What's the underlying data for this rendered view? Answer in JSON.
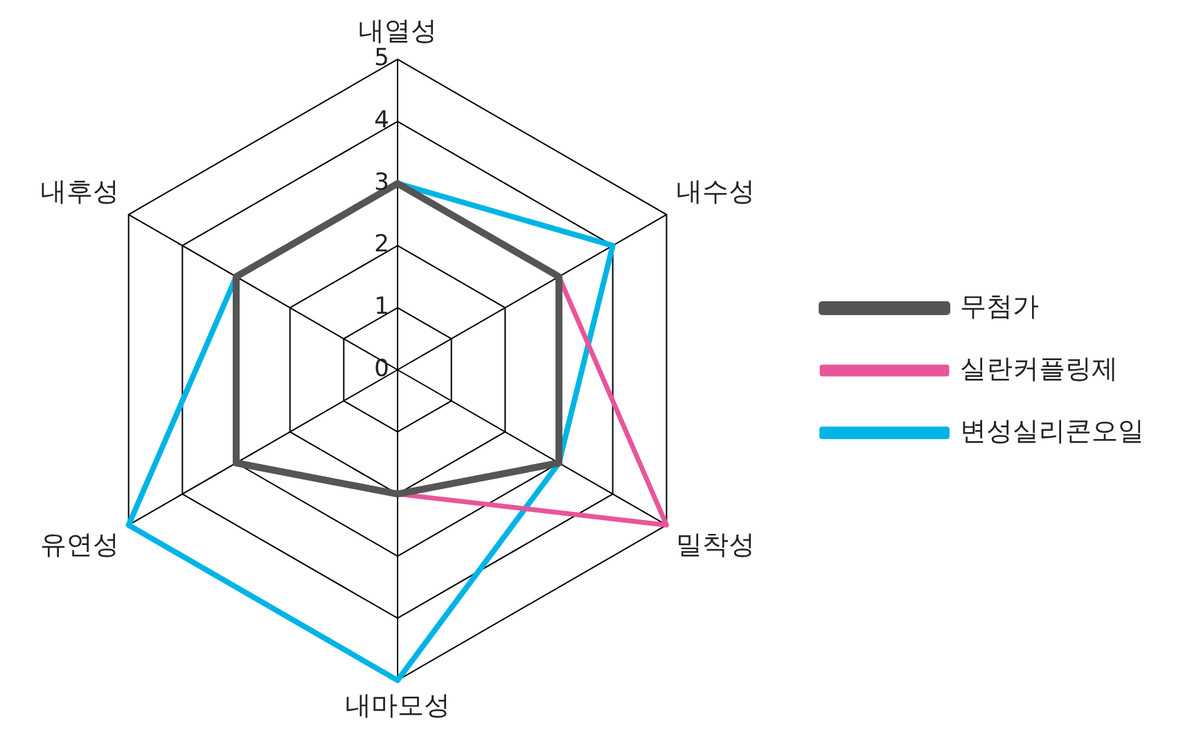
{
  "chart_data": {
    "type": "radar",
    "categories": [
      "내열성",
      "내수성",
      "밀착성",
      "내마모성",
      "유연성",
      "내후성"
    ],
    "ylim": [
      0,
      5
    ],
    "yticks": [
      0,
      1,
      2,
      3,
      4,
      5
    ],
    "grid": true,
    "legend": "right",
    "marker": "none",
    "line_style": "solid",
    "series": [
      {
        "name": "무첨가",
        "color": "#555555",
        "values": [
          3,
          3,
          3,
          2,
          3,
          3
        ]
      },
      {
        "name": "실란커플링제",
        "color": "#e8559a",
        "values": [
          3,
          3,
          5,
          2,
          3,
          3
        ]
      },
      {
        "name": "변성실리콘오일",
        "color": "#00b4e6",
        "values": [
          3,
          4,
          3,
          5,
          5,
          3
        ]
      }
    ]
  }
}
